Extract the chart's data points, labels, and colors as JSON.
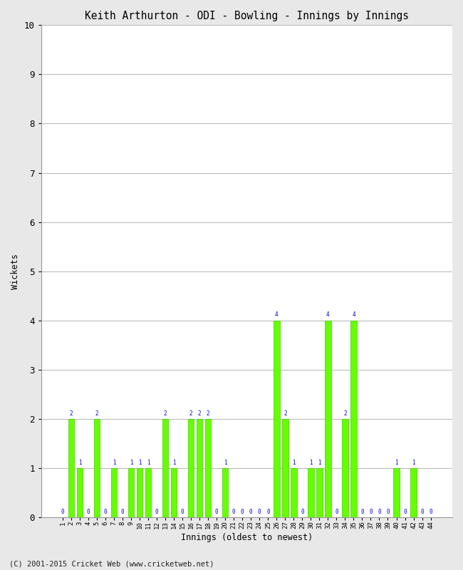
{
  "title": "Keith Arthurton - ODI - Bowling - Innings by Innings",
  "xlabel": "Innings (oldest to newest)",
  "ylabel": "Wickets",
  "bar_color": "#66ff00",
  "bar_edge_color": "#44cc00",
  "label_color": "#0000cc",
  "background_color": "#e8e8e8",
  "plot_bg_color": "#ffffff",
  "ylim": [
    0,
    10
  ],
  "yticks": [
    0,
    1,
    2,
    3,
    4,
    5,
    6,
    7,
    8,
    9,
    10
  ],
  "footer": "(C) 2001-2015 Cricket Web (www.cricketweb.net)",
  "innings": [
    1,
    2,
    3,
    4,
    5,
    6,
    7,
    8,
    9,
    10,
    11,
    12,
    13,
    14,
    15,
    16,
    17,
    18,
    19,
    20,
    21,
    22,
    23,
    24,
    25,
    26,
    27,
    28,
    29,
    30,
    31,
    32,
    33,
    34,
    35,
    36,
    37,
    38,
    39,
    40,
    41,
    42,
    43,
    44
  ],
  "wickets": [
    0,
    2,
    1,
    0,
    2,
    0,
    1,
    0,
    1,
    1,
    1,
    0,
    2,
    1,
    0,
    2,
    2,
    2,
    0,
    1,
    0,
    0,
    0,
    0,
    0,
    4,
    2,
    1,
    0,
    1,
    1,
    4,
    0,
    2,
    4,
    0,
    0,
    0,
    0,
    1,
    0,
    1,
    0,
    0
  ]
}
